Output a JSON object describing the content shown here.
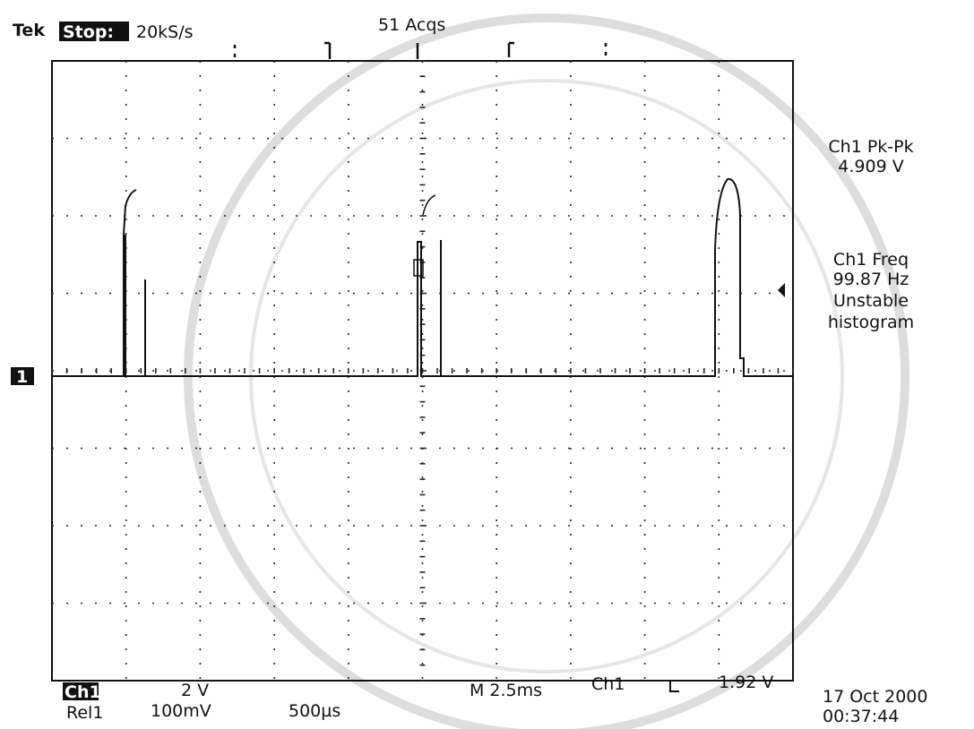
{
  "header": {
    "brand": "Tek",
    "state": "Stop:",
    "sample_rate": "20kS/s",
    "acquisitions": "51 Acqs"
  },
  "measurements": [
    {
      "label": "Ch1 Pk-Pk",
      "value": "4.909 V"
    },
    {
      "label": "Ch1 Freq",
      "value": "99.87 Hz",
      "note": [
        "Unstable",
        "histogram"
      ]
    }
  ],
  "ground_marker": "1",
  "footer": {
    "channel": "Ch1",
    "volts_per_div": "2 V",
    "timebase": "M 2.5ms",
    "trigger_source": "Ch1",
    "trigger_level": "1.92 V",
    "ref": "Rel1",
    "ref_scale": "100mV",
    "ref_time": "500µs",
    "date": "17 Oct 2000",
    "time": "00:37:44"
  }
}
